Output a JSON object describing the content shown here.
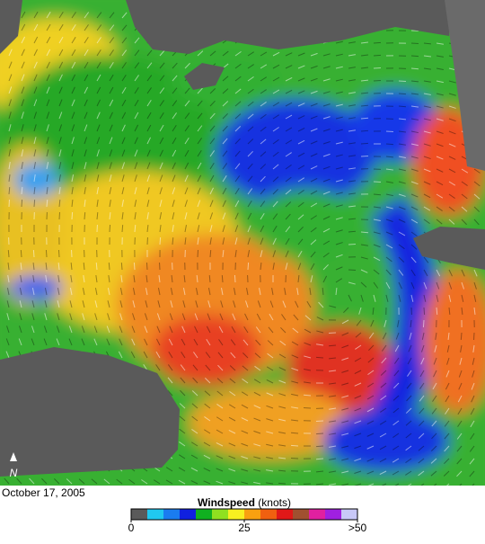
{
  "date": "October 17, 2005",
  "north_label": "N",
  "legend": {
    "title": "Windspeed",
    "unit": "(knots)",
    "xlim": [
      0,
      50
    ],
    "ticks": [
      0,
      25,
      {
        "value": 50,
        "label": ">50"
      }
    ],
    "colors": [
      "#5a5a5a",
      "#20c8f0",
      "#1a7cf0",
      "#1020e0",
      "#10b020",
      "#90e020",
      "#f8f020",
      "#f8a010",
      "#f06010",
      "#e01818",
      "#a05030",
      "#e020a0",
      "#a020e0",
      "#c8c8f8"
    ]
  }
}
